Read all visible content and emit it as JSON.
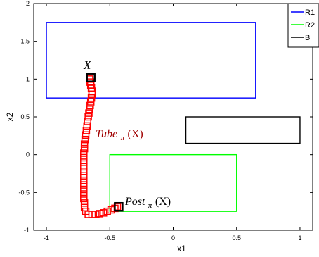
{
  "chart_data": {
    "type": "line",
    "xlabel": "x1",
    "ylabel": "x2",
    "xlim": [
      -1.1,
      1.1
    ],
    "ylim": [
      -1,
      2
    ],
    "x_ticks": [
      -1,
      -0.5,
      0,
      0.5,
      1
    ],
    "y_ticks": [
      -1,
      -0.5,
      0,
      0.5,
      1,
      1.5,
      2
    ],
    "x_tick_labels": [
      "-1",
      "-0.5",
      "0",
      "0.5",
      "1"
    ],
    "y_tick_labels": [
      "-1",
      "-0.5",
      "0",
      "0.5",
      "1",
      "1.5",
      "2"
    ],
    "grid": false,
    "legend": {
      "placement": "top-right",
      "entries": [
        {
          "label": "R1",
          "color": "#0000ff"
        },
        {
          "label": "R2",
          "color": "#00ff00"
        },
        {
          "label": "B",
          "color": "#000000"
        }
      ]
    },
    "rectangles": [
      {
        "name": "R1",
        "color": "#0000ff",
        "x": [
          -1,
          0.65
        ],
        "y": [
          0.75,
          1.75
        ]
      },
      {
        "name": "R2",
        "color": "#00ff00",
        "x": [
          -0.5,
          0.5
        ],
        "y": [
          -0.75,
          0
        ]
      },
      {
        "name": "B",
        "color": "#000000",
        "x": [
          0.1,
          1
        ],
        "y": [
          0.15,
          0.5
        ]
      }
    ],
    "tube": {
      "color": "#ff0000",
      "points": [
        [
          -0.66,
          1.0
        ],
        [
          -0.655,
          0.96
        ],
        [
          -0.65,
          0.92
        ],
        [
          -0.645,
          0.88
        ],
        [
          -0.64,
          0.84
        ],
        [
          -0.64,
          0.8
        ],
        [
          -0.645,
          0.75
        ],
        [
          -0.65,
          0.7
        ],
        [
          -0.655,
          0.65
        ],
        [
          -0.66,
          0.6
        ],
        [
          -0.665,
          0.55
        ],
        [
          -0.67,
          0.5
        ],
        [
          -0.675,
          0.44
        ],
        [
          -0.68,
          0.38
        ],
        [
          -0.685,
          0.32
        ],
        [
          -0.69,
          0.26
        ],
        [
          -0.695,
          0.2
        ],
        [
          -0.7,
          0.14
        ],
        [
          -0.7,
          0.08
        ],
        [
          -0.705,
          0.02
        ],
        [
          -0.705,
          -0.04
        ],
        [
          -0.705,
          -0.1
        ],
        [
          -0.705,
          -0.16
        ],
        [
          -0.705,
          -0.22
        ],
        [
          -0.705,
          -0.28
        ],
        [
          -0.705,
          -0.34
        ],
        [
          -0.705,
          -0.4
        ],
        [
          -0.705,
          -0.46
        ],
        [
          -0.705,
          -0.52
        ],
        [
          -0.705,
          -0.58
        ],
        [
          -0.7,
          -0.64
        ],
        [
          -0.7,
          -0.7
        ],
        [
          -0.69,
          -0.75
        ],
        [
          -0.67,
          -0.79
        ],
        [
          -0.64,
          -0.79
        ],
        [
          -0.61,
          -0.79
        ],
        [
          -0.58,
          -0.78
        ],
        [
          -0.55,
          -0.77
        ],
        [
          -0.52,
          -0.75
        ],
        [
          -0.49,
          -0.73
        ],
        [
          -0.46,
          -0.71
        ],
        [
          -0.44,
          -0.69
        ]
      ]
    },
    "markers": [
      {
        "name": "X",
        "x": -0.65,
        "y": 1.02,
        "color": "#000000"
      },
      {
        "name": "Post",
        "x": -0.43,
        "y": -0.69,
        "color": "#000000"
      }
    ],
    "annotations": {
      "x_label": {
        "main": "X"
      },
      "tube_label": {
        "main": "Tube",
        "sub": "π",
        "arg": "(X)",
        "color": "#a00000"
      },
      "post_label": {
        "main": "Post",
        "sub": "π",
        "arg": "(X)",
        "color": "#000000"
      }
    }
  }
}
